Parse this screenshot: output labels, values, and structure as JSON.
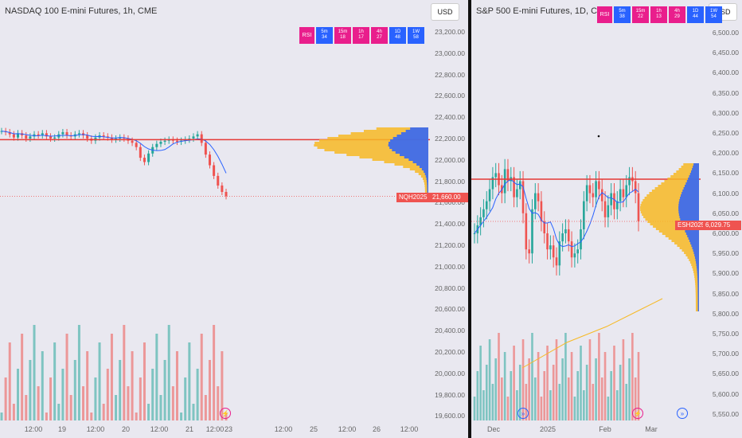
{
  "left": {
    "title": "NASDAQ 100 E-mini Futures, 1h, CME",
    "currency": "USD",
    "badges": [
      {
        "label": "RSI",
        "color": "#e91e8c"
      },
      {
        "label": "5m\n34",
        "color": "#2962ff"
      },
      {
        "label": "15m\n18",
        "color": "#e91e8c"
      },
      {
        "label": "1h\n17",
        "color": "#e91e8c"
      },
      {
        "label": "4h\n27",
        "color": "#e91e8c"
      },
      {
        "label": "1D\n48",
        "color": "#2962ff"
      },
      {
        "label": "1W\n58",
        "color": "#2962ff"
      }
    ],
    "yticks": [
      "23,200.00",
      "23,000.00",
      "22,800.00",
      "22,600.00",
      "22,400.00",
      "22,200.00",
      "22,000.00",
      "21,800.00",
      "21,600.00",
      "21,400.00",
      "21,200.00",
      "21,000.00",
      "20,800.00",
      "20,600.00",
      "20,400.00",
      "20,200.00",
      "20,000.00",
      "19,800.00",
      "19,600.00"
    ],
    "xticks": [
      "12:00",
      "19",
      "12:00",
      "20",
      "12:00",
      "21",
      "12:00",
      "23",
      "12:00",
      "25",
      "12:00",
      "26",
      "12:00"
    ],
    "symbol": "NQH2025",
    "last_price": "21,660.00",
    "symbol_color": "#ef5350"
  },
  "right": {
    "title": "S&P 500 E-mini Futures, 1D, CME",
    "currency": "USD",
    "badges": [
      {
        "label": "RSI",
        "color": "#e91e8c"
      },
      {
        "label": "5m\n38",
        "color": "#2962ff"
      },
      {
        "label": "15m\n22",
        "color": "#e91e8c"
      },
      {
        "label": "1h\n13",
        "color": "#e91e8c"
      },
      {
        "label": "4h\n29",
        "color": "#e91e8c"
      },
      {
        "label": "1D\n44",
        "color": "#2962ff"
      },
      {
        "label": "1W\n54",
        "color": "#2962ff"
      }
    ],
    "yticks": [
      "6,500.00",
      "6,450.00",
      "6,400.00",
      "6,350.00",
      "6,300.00",
      "6,250.00",
      "6,200.00",
      "6,150.00",
      "6,100.00",
      "6,050.00",
      "6,000.00",
      "5,950.00",
      "5,900.00",
      "5,850.00",
      "5,800.00",
      "5,750.00",
      "5,700.00",
      "5,650.00",
      "5,600.00",
      "5,550.00"
    ],
    "xticks": [
      "Dec",
      "2025",
      "Feb",
      "Mar"
    ],
    "symbol": "ESH2025",
    "last_price": "6,029.75",
    "symbol_color": "#ef5350"
  },
  "chart_data": [
    {
      "type": "candlestick",
      "title": "NASDAQ 100 E-mini Futures, 1h, CME",
      "ylim": [
        19600,
        23300
      ],
      "horizontal_line": 22190,
      "last_price": 21660,
      "close_series": [
        22270,
        22260,
        22240,
        22210,
        22250,
        22230,
        22200,
        22220,
        22240,
        22230,
        22250,
        22220,
        22200,
        22210,
        22240,
        22260,
        22230,
        22220,
        22240,
        22250,
        22230,
        22200,
        22180,
        22210,
        22230,
        22220,
        22210,
        22190,
        22200,
        22210,
        22200,
        22180,
        22160,
        22120,
        22020,
        21980,
        22060,
        22120,
        22150,
        22170,
        22180,
        22190,
        22180,
        22170,
        22180,
        22190,
        22200,
        22220,
        22240,
        22160,
        22050,
        21950,
        21850,
        21760,
        21700,
        21660
      ],
      "volume_profile": true
    },
    {
      "type": "candlestick",
      "title": "S&P 500 E-mini Futures, 1D, CME",
      "ylim": [
        5550,
        6520
      ],
      "horizontal_line": 6135,
      "last_price": 6029.75,
      "close_series": [
        6000,
        6020,
        6040,
        6060,
        6080,
        6110,
        6140,
        6150,
        6120,
        6100,
        6160,
        6130,
        6140,
        6090,
        6110,
        6130,
        6050,
        5960,
        5950,
        6060,
        6100,
        6080,
        6030,
        6000,
        5960,
        5970,
        5940,
        5920,
        5980,
        6000,
        6010,
        5980,
        5940,
        5950,
        5960,
        6010,
        6080,
        6120,
        6100,
        6090,
        6130,
        6110,
        6080,
        6040,
        6070,
        6100,
        6060,
        6080,
        6110,
        6090,
        6120,
        6140,
        6130,
        6100,
        6030
      ],
      "volume_profile": true
    }
  ]
}
